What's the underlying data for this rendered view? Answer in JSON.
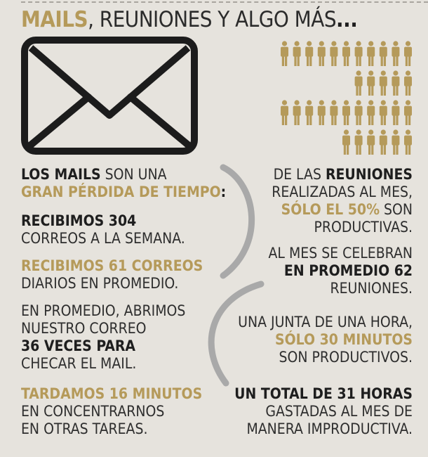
{
  "title": {
    "highlight": "MAILS",
    "rest": ", REUNIONES Y ALGO MÁS",
    "dots": "..."
  },
  "left": {
    "b1": {
      "l1a": "LOS MAILS",
      "l1b": " SON UNA",
      "l2a": "GRAN PÉRDIDA DE TIEMPO",
      "l2b": ":"
    },
    "b2": {
      "l1": "RECIBIMOS 304",
      "l2": "CORREOS A LA SEMANA."
    },
    "b3": {
      "l1": "RECIBIMOS 61 CORREOS",
      "l2": "DIARIOS EN PROMEDIO."
    },
    "b4": {
      "l1": "EN PROMEDIO, ABRIMOS",
      "l2": "NUESTRO CORREO",
      "l3": "36 VECES PARA",
      "l4": "CHECAR EL MAIL."
    },
    "b5": {
      "l1": "TARDAMOS 16 MINUTOS",
      "l2": "EN CONCENTRARNOS",
      "l3": "EN OTRAS TAREAS."
    }
  },
  "right": {
    "b1": {
      "l1a": "DE LAS ",
      "l1b": "REUNIONES",
      "l2": "REALIZADAS AL MES,",
      "l3a": "SÓLO EL 50%",
      "l3b": " SON",
      "l4": "PRODUCTIVAS."
    },
    "b2": {
      "l1": "AL MES SE CELEBRAN",
      "l2": "EN PROMEDIO 62",
      "l3": "REUNIONES."
    },
    "b3": {
      "l1": "UNA JUNTA DE UNA HORA,",
      "l2": "SÓLO 30 MINUTOS",
      "l3": "SON PRODUCTIVOS."
    },
    "b4": {
      "l1": "UN TOTAL DE 31 HORAS",
      "l2": "GASTADAS AL MES DE",
      "l3": "MANERA IMPRODUCTIVA."
    }
  },
  "colors": {
    "gold": "#b59a5a",
    "dark": "#1e1e1e",
    "background": "#e6e3dd",
    "arc": "#a9a9a9"
  },
  "icons": {
    "envelope": "envelope-icon",
    "person": "person-icon"
  },
  "people_rows": [
    11,
    5,
    11,
    6
  ]
}
